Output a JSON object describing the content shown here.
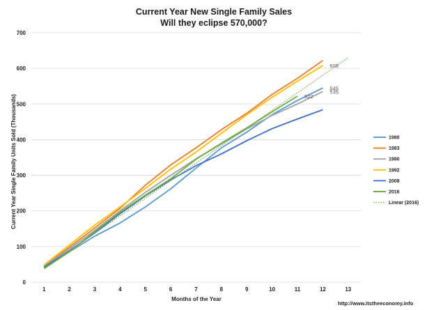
{
  "chart_data": {
    "type": "line",
    "title": "Current Year New Single Family Sales",
    "subtitle": "Will they eclipse 570,000?",
    "xlabel": "Months of the Year",
    "ylabel": "Current Year Single Family Units Sold (Thousands)",
    "x": [
      1,
      2,
      3,
      4,
      5,
      6,
      7,
      8,
      9,
      10,
      11,
      12,
      13
    ],
    "xlim": [
      0.5,
      13.5
    ],
    "ylim": [
      0,
      700
    ],
    "yticks": [
      0,
      100,
      200,
      300,
      400,
      500,
      600,
      700
    ],
    "grid": true,
    "legend_position": "right",
    "source": "http://www.itstheeconomy.info",
    "series": [
      {
        "name": "1980",
        "color": "#5b9bd5",
        "style": "solid",
        "x": [
          1,
          2,
          3,
          4,
          5,
          6,
          7,
          8,
          9,
          10,
          11,
          12
        ],
        "values": [
          44,
          85,
          129,
          166,
          211,
          262,
          320,
          377,
          421,
          470,
          510,
          545
        ]
      },
      {
        "name": "1983",
        "color": "#ed7d31",
        "style": "solid",
        "x": [
          1,
          2,
          3,
          4,
          5,
          6,
          7,
          8,
          9,
          10,
          11,
          12
        ],
        "values": [
          46,
          98,
          152,
          207,
          272,
          329,
          377,
          428,
          474,
          527,
          572,
          622
        ]
      },
      {
        "name": "1990",
        "color": "#a5a5a5",
        "style": "solid",
        "x": [
          1,
          2,
          3,
          4,
          5,
          6,
          7,
          8,
          9,
          10,
          11,
          12
        ],
        "values": [
          45,
          93,
          145,
          200,
          252,
          300,
          346,
          388,
          430,
          468,
          500,
          535
        ]
      },
      {
        "name": "1992",
        "color": "#ffc000",
        "style": "solid",
        "x": [
          1,
          2,
          3,
          4,
          5,
          6,
          7,
          8,
          9,
          10,
          11,
          12
        ],
        "values": [
          48,
          104,
          160,
          211,
          263,
          317,
          365,
          418,
          470,
          519,
          564,
          608
        ]
      },
      {
        "name": "2008",
        "color": "#4472c4",
        "style": "solid",
        "x": [
          1,
          2,
          3,
          4,
          5,
          6,
          7,
          8,
          9,
          10,
          11,
          12
        ],
        "values": [
          42,
          88,
          138,
          192,
          242,
          287,
          327,
          360,
          397,
          431,
          458,
          484
        ]
      },
      {
        "name": "2016",
        "color": "#70ad47",
        "style": "solid",
        "x": [
          1,
          2,
          3,
          4,
          5,
          6,
          7,
          8,
          9,
          10,
          11
        ],
        "values": [
          38,
          85,
          142,
          196,
          244,
          290,
          345,
          390,
          433,
          478,
          522
        ]
      },
      {
        "name": "Linear (2016)",
        "color": "#70ad47",
        "style": "dotted",
        "x": [
          1,
          13
        ],
        "values": [
          38,
          630
        ]
      }
    ],
    "end_labels": [
      {
        "series": "1992",
        "x": 12,
        "value": 608,
        "text": "608"
      },
      {
        "series": "1980",
        "x": 12,
        "value": 545,
        "text": "545"
      },
      {
        "series": "1990",
        "x": 12,
        "value": 535,
        "text": "535"
      },
      {
        "series": "2016",
        "x": 11,
        "value": 522,
        "text": "522"
      }
    ]
  }
}
